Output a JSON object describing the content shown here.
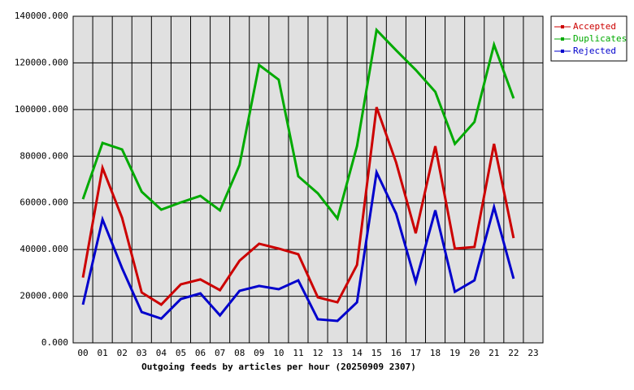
{
  "chart_data": {
    "type": "line",
    "title": "Outgoing feeds by articles per hour (20250909 2307)",
    "categories": [
      "00",
      "01",
      "02",
      "03",
      "04",
      "05",
      "06",
      "07",
      "08",
      "09",
      "10",
      "11",
      "12",
      "13",
      "14",
      "15",
      "16",
      "17",
      "18",
      "19",
      "20",
      "21",
      "22",
      "23"
    ],
    "series": [
      {
        "name": "Accepted",
        "color": "#cc0000",
        "values": [
          28000,
          75000,
          53600,
          21600,
          16400,
          25100,
          27200,
          22600,
          35200,
          42500,
          40400,
          38000,
          19500,
          17400,
          33400,
          101000,
          77300,
          47000,
          84300,
          40400,
          41100,
          85300,
          44900,
          null
        ]
      },
      {
        "name": "Duplicates",
        "color": "#00aa00",
        "values": [
          61600,
          85700,
          82900,
          64800,
          57100,
          60200,
          63000,
          56800,
          76300,
          119100,
          112800,
          71400,
          64100,
          53300,
          84300,
          134100,
          125400,
          117000,
          107600,
          85300,
          94700,
          127800,
          104800,
          null
        ]
      },
      {
        "name": "Rejected",
        "color": "#0000cc",
        "values": [
          16400,
          52900,
          32000,
          13200,
          10400,
          18800,
          21200,
          11800,
          22300,
          24400,
          23000,
          26800,
          10100,
          9400,
          17400,
          73100,
          55400,
          26100,
          56800,
          21900,
          26800,
          58200,
          27500,
          null
        ]
      }
    ],
    "ylim": [
      0,
      140000
    ],
    "yticks": [
      {
        "value": 0,
        "label": "0.000"
      },
      {
        "value": 20000,
        "label": "20000.000"
      },
      {
        "value": 40000,
        "label": "40000.000"
      },
      {
        "value": 60000,
        "label": "60000.000"
      },
      {
        "value": 80000,
        "label": "80000.000"
      },
      {
        "value": 100000,
        "label": "100000.000"
      },
      {
        "value": 120000,
        "label": "120000.000"
      },
      {
        "value": 140000,
        "label": "140000.000"
      }
    ],
    "grid": true,
    "legend": "top-right"
  }
}
